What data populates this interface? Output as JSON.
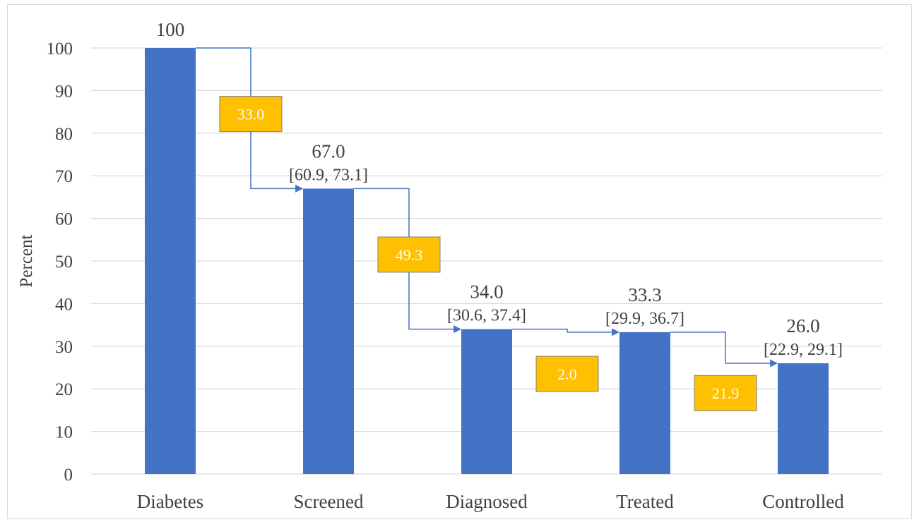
{
  "chart_data": {
    "type": "bar",
    "title": "",
    "xlabel": "",
    "ylabel": "Percent",
    "ylim": [
      0,
      100
    ],
    "yticks": [
      0,
      10,
      20,
      30,
      40,
      50,
      60,
      70,
      80,
      90,
      100
    ],
    "grid": true,
    "legend": "none",
    "categories": [
      "Diabetes",
      "Screened",
      "Diagnosed",
      "Treated",
      "Controlled"
    ],
    "values": [
      100,
      67.0,
      34.0,
      33.3,
      26.0
    ],
    "value_labels": [
      "100",
      "67.0",
      "34.0",
      "33.3",
      "26.0"
    ],
    "ci_labels": [
      "",
      "[60.9, 73.1]",
      "[30.6, 37.4]",
      "[29.9, 36.7]",
      "[22.9, 29.1]"
    ],
    "drops": [
      {
        "label": "33.0",
        "level": 84.5
      },
      {
        "label": "49.3",
        "level": 51.5
      },
      {
        "label": "2.0",
        "level": 23.5
      },
      {
        "label": "21.9",
        "level": 19.0
      }
    ],
    "colors": {
      "bar": "#4472c4",
      "connector": "#4472c4",
      "drop_box": "#ffc000",
      "drop_box_border": "#7f7f7f",
      "drop_text": "#ffffff",
      "grid": "#d9d9d9",
      "text": "#404040"
    }
  }
}
